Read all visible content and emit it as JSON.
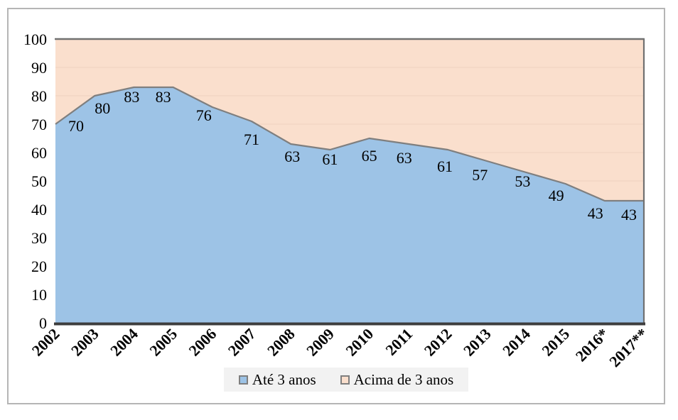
{
  "chart_data": {
    "type": "area",
    "stacked": true,
    "title": "",
    "xlabel": "",
    "ylabel": "",
    "categories": [
      "2002",
      "2003",
      "2004",
      "2005",
      "2006",
      "2007",
      "2008",
      "2009",
      "2010",
      "2011",
      "2012",
      "2013",
      "2014",
      "2015",
      "2016*",
      "2017**"
    ],
    "series": [
      {
        "name": "Até 3 anos",
        "color": "#9dc3e6",
        "values": [
          70,
          80,
          83,
          83,
          76,
          71,
          63,
          61,
          65,
          63,
          61,
          57,
          53,
          49,
          43,
          43
        ],
        "data_labels": [
          70,
          80,
          83,
          83,
          76,
          71,
          63,
          61,
          65,
          63,
          61,
          57,
          53,
          49,
          43,
          43
        ]
      },
      {
        "name": "Acima de 3 anos",
        "color": "#fadfcd",
        "values": [
          30,
          20,
          17,
          17,
          24,
          29,
          37,
          39,
          35,
          37,
          39,
          43,
          47,
          51,
          57,
          57
        ],
        "data_labels": null
      }
    ],
    "ylim": [
      0,
      100
    ],
    "yticks": [
      0,
      10,
      20,
      30,
      40,
      50,
      60,
      70,
      80,
      90,
      100
    ],
    "grid": "horizontal-faint",
    "legend_position": "bottom"
  },
  "styles": {
    "gridline_color": "#f2d6c3",
    "boundary_line_color": "#7f7f7f",
    "plot_border_color": "#717171",
    "axis_line_color": "#3d3d3d",
    "frame_border_color": "#b5b5b5",
    "legend_background": "#f2f2f2",
    "text_color": "#000000",
    "background": "#ffffff"
  }
}
